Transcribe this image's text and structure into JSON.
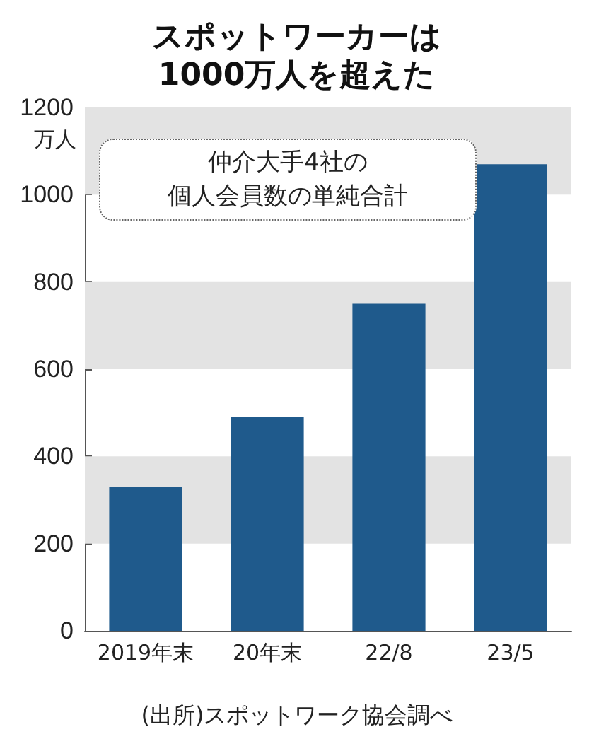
{
  "chart_data": {
    "type": "bar",
    "title": "スポットワーカーは\n1000万人を超えた",
    "ylabel": "万人",
    "categories": [
      "2019年末",
      "20年末",
      "22/8",
      "23/5"
    ],
    "values": [
      330,
      490,
      750,
      1070
    ],
    "color": "#1f5a8c",
    "ylim": [
      0,
      1200
    ],
    "yticks": [
      0,
      200,
      400,
      600,
      800,
      1000,
      1200
    ],
    "bands": [
      {
        "axis": "y",
        "from": 200,
        "to": 400,
        "color": "#e3e3e3"
      },
      {
        "axis": "y",
        "from": 600,
        "to": 800,
        "color": "#e3e3e3"
      },
      {
        "axis": "y",
        "from": 1000,
        "to": 1200,
        "color": "#e3e3e3"
      }
    ],
    "annotations": [
      "仲介大手4社の",
      "個人会員数の単純合計",
      "(出所)スポットワーク協会調べ"
    ]
  }
}
